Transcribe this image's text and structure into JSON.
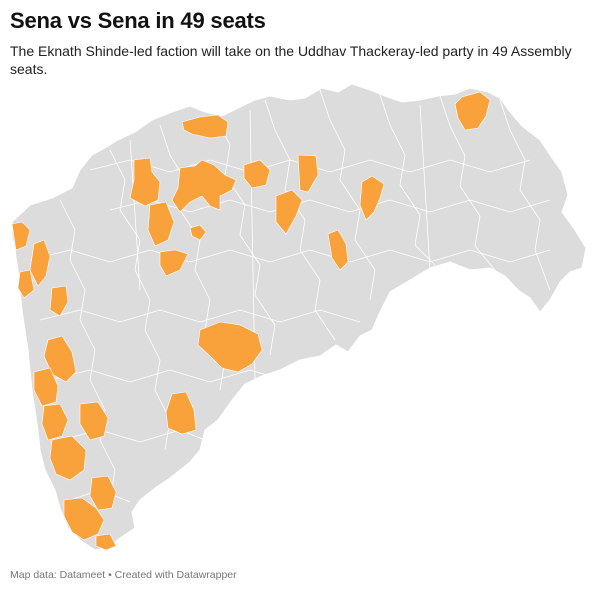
{
  "header": {
    "title": "Sena vs Sena in 49 seats",
    "subtitle": "The Eknath Shinde-led faction will take on the Uddhav Thackeray-led party in 49 Assembly seats."
  },
  "map": {
    "region": "Maharashtra",
    "base_color": "#dcdcdc",
    "boundary_color": "#ffffff",
    "highlight_color": "#f9a13a",
    "highlighted_seat_count": 49
  },
  "footer": {
    "source_label": "Map data: Datameet",
    "separator": "•",
    "credit": "Created with Datawrapper"
  }
}
